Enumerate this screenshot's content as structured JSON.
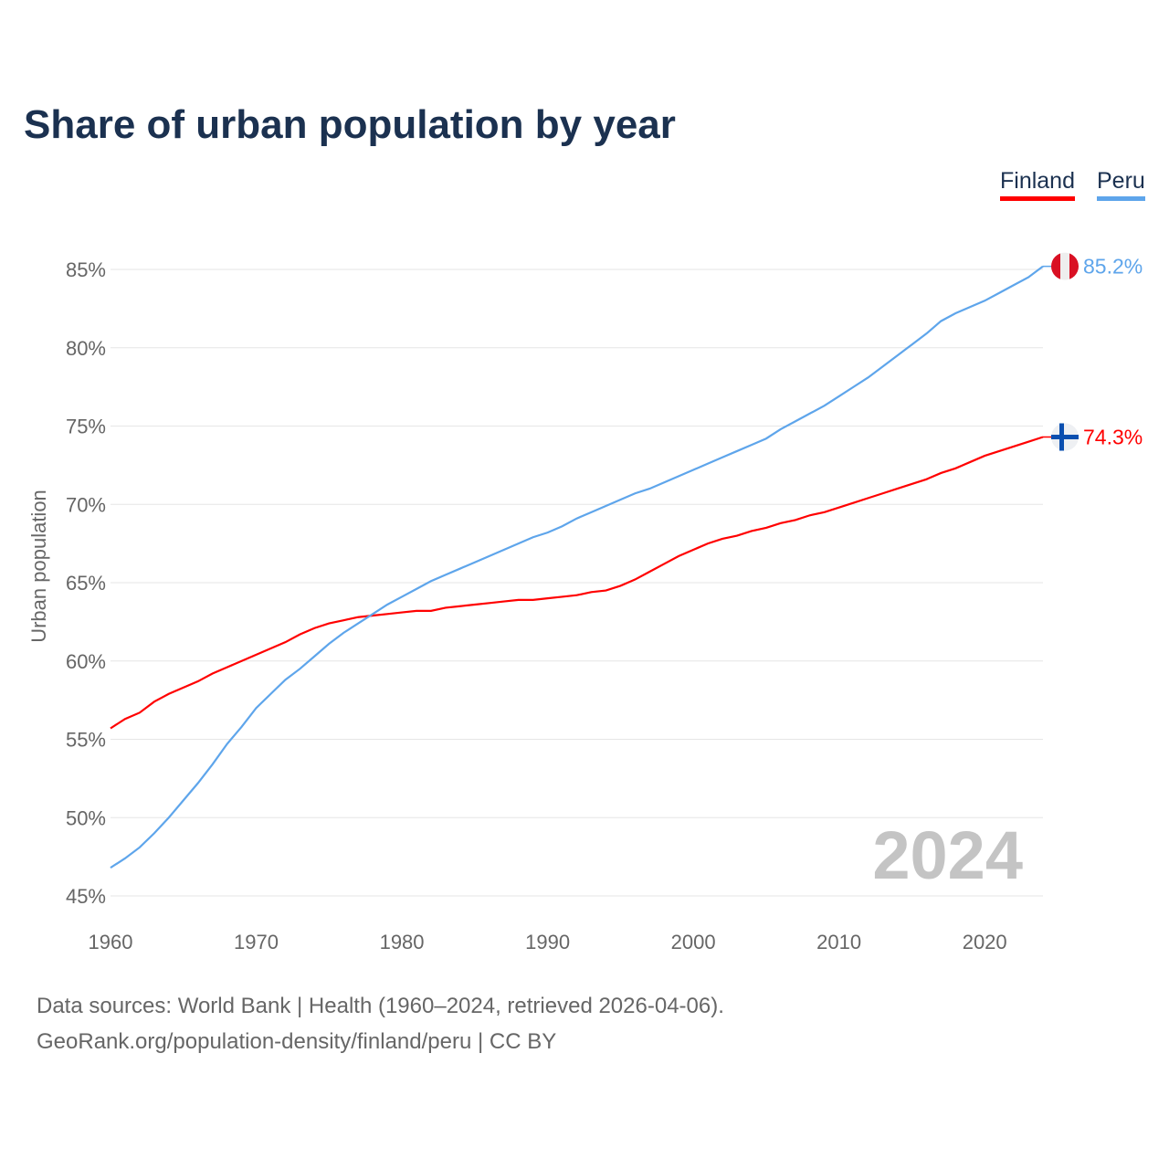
{
  "chart_data": {
    "type": "line",
    "title": "Share of urban population by year",
    "xlabel": "",
    "ylabel": "Urban population",
    "xlim": [
      1960,
      2024
    ],
    "ylim": [
      45,
      85
    ],
    "yticks": [
      45,
      50,
      55,
      60,
      65,
      70,
      75,
      80,
      85
    ],
    "ytick_labels": [
      "45%",
      "50%",
      "55%",
      "60%",
      "65%",
      "70%",
      "75%",
      "80%",
      "85%"
    ],
    "xticks": [
      1960,
      1970,
      1980,
      1990,
      2000,
      2010,
      2020
    ],
    "xtick_labels": [
      "1960",
      "1970",
      "1980",
      "1990",
      "2000",
      "2010",
      "2020"
    ],
    "grid": true,
    "legend_placement": "top-right",
    "year_label": "2024",
    "series": [
      {
        "name": "Finland",
        "color": "#ff0000",
        "end_label": "74.3%",
        "flag": "finland-flag",
        "values": [
          55.7,
          56.3,
          56.7,
          57.4,
          57.9,
          58.3,
          58.7,
          59.2,
          59.6,
          60.0,
          60.4,
          60.8,
          61.2,
          61.7,
          62.1,
          62.4,
          62.6,
          62.8,
          62.9,
          63.0,
          63.1,
          63.2,
          63.2,
          63.4,
          63.5,
          63.6,
          63.7,
          63.8,
          63.9,
          63.9,
          64.0,
          64.1,
          64.2,
          64.4,
          64.5,
          64.8,
          65.2,
          65.7,
          66.2,
          66.7,
          67.1,
          67.5,
          67.8,
          68.0,
          68.3,
          68.5,
          68.8,
          69.0,
          69.3,
          69.5,
          69.8,
          70.1,
          70.4,
          70.7,
          71.0,
          71.3,
          71.6,
          72.0,
          72.3,
          72.7,
          73.1,
          73.4,
          73.7,
          74.0,
          74.3
        ]
      },
      {
        "name": "Peru",
        "color": "#5ea5eb",
        "end_label": "85.2%",
        "flag": "peru-flag",
        "values": [
          46.8,
          47.4,
          48.1,
          49.0,
          50.0,
          51.1,
          52.2,
          53.4,
          54.7,
          55.8,
          57.0,
          57.9,
          58.8,
          59.5,
          60.3,
          61.1,
          61.8,
          62.4,
          63.0,
          63.6,
          64.1,
          64.6,
          65.1,
          65.5,
          65.9,
          66.3,
          66.7,
          67.1,
          67.5,
          67.9,
          68.2,
          68.6,
          69.1,
          69.5,
          69.9,
          70.3,
          70.7,
          71.0,
          71.4,
          71.8,
          72.2,
          72.6,
          73.0,
          73.4,
          73.8,
          74.2,
          74.8,
          75.3,
          75.8,
          76.3,
          76.9,
          77.5,
          78.1,
          78.8,
          79.5,
          80.2,
          80.9,
          81.7,
          82.2,
          82.6,
          83.0,
          83.5,
          84.0,
          84.5,
          85.2
        ]
      }
    ]
  },
  "footer": {
    "line1": "Data sources: World Bank | Health (1960–2024, retrieved 2026-04-06).",
    "line2": "GeoRank.org/population-density/finland/peru | CC BY"
  }
}
